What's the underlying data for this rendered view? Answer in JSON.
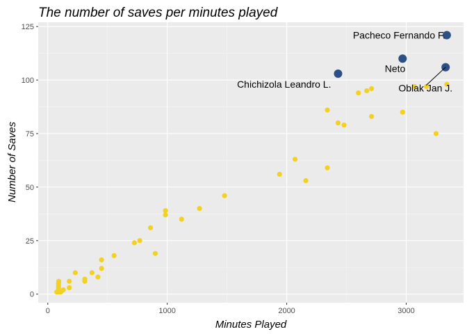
{
  "chart_data": {
    "type": "scatter",
    "title": "The number of saves per minutes played",
    "xlabel": "Minutes Played",
    "ylabel": "Number of Saves",
    "xlim": [
      -80,
      3480
    ],
    "ylim": [
      -4,
      127
    ],
    "xticks": [
      0,
      1000,
      2000,
      3000
    ],
    "yticks": [
      0,
      25,
      50,
      75,
      100,
      125
    ],
    "grid": true,
    "background": "#ebebeb",
    "colors": {
      "regular": "#f2d024",
      "highlight": "#2c4f86"
    },
    "points": [
      {
        "x": 75,
        "y": 1
      },
      {
        "x": 90,
        "y": 1
      },
      {
        "x": 90,
        "y": 2
      },
      {
        "x": 90,
        "y": 3
      },
      {
        "x": 90,
        "y": 4
      },
      {
        "x": 90,
        "y": 5
      },
      {
        "x": 92,
        "y": 6
      },
      {
        "x": 110,
        "y": 1
      },
      {
        "x": 130,
        "y": 2
      },
      {
        "x": 180,
        "y": 3
      },
      {
        "x": 180,
        "y": 6
      },
      {
        "x": 230,
        "y": 10
      },
      {
        "x": 310,
        "y": 6
      },
      {
        "x": 310,
        "y": 7
      },
      {
        "x": 370,
        "y": 10
      },
      {
        "x": 420,
        "y": 8
      },
      {
        "x": 450,
        "y": 12
      },
      {
        "x": 450,
        "y": 16
      },
      {
        "x": 555,
        "y": 18
      },
      {
        "x": 725,
        "y": 24
      },
      {
        "x": 770,
        "y": 25
      },
      {
        "x": 860,
        "y": 31
      },
      {
        "x": 900,
        "y": 19
      },
      {
        "x": 985,
        "y": 37
      },
      {
        "x": 985,
        "y": 39
      },
      {
        "x": 1120,
        "y": 35
      },
      {
        "x": 1270,
        "y": 40
      },
      {
        "x": 1480,
        "y": 46
      },
      {
        "x": 1940,
        "y": 56
      },
      {
        "x": 2070,
        "y": 63
      },
      {
        "x": 2160,
        "y": 53
      },
      {
        "x": 2340,
        "y": 59
      },
      {
        "x": 2340,
        "y": 86
      },
      {
        "x": 2430,
        "y": 80
      },
      {
        "x": 2480,
        "y": 79
      },
      {
        "x": 2600,
        "y": 94
      },
      {
        "x": 2670,
        "y": 95
      },
      {
        "x": 2710,
        "y": 96
      },
      {
        "x": 2710,
        "y": 83
      },
      {
        "x": 2970,
        "y": 85
      },
      {
        "x": 3070,
        "y": 97
      },
      {
        "x": 3170,
        "y": 97
      },
      {
        "x": 3250,
        "y": 75
      },
      {
        "x": 3340,
        "y": 98
      }
    ],
    "highlighted": [
      {
        "x": 2430,
        "y": 103,
        "label": "Chichizola Leandro L."
      },
      {
        "x": 2970,
        "y": 110,
        "label": "Neto"
      },
      {
        "x": 3340,
        "y": 121,
        "label": "Pacheco Fernando F."
      },
      {
        "x": 3330,
        "y": 106,
        "label": "Oblak Jan J."
      }
    ]
  }
}
